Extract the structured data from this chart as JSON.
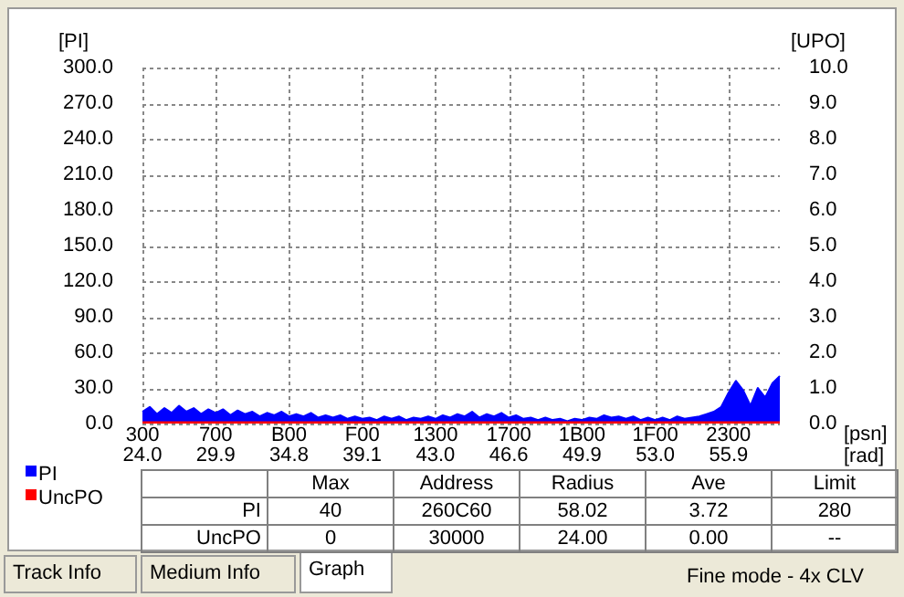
{
  "chart_data": {
    "type": "area",
    "ylabel": "[PI]",
    "y2label": "[UPO]",
    "xlabel": "[psn]",
    "x2label": "[rad]",
    "categories": [
      "300\n24.0",
      null,
      null,
      null,
      null,
      null,
      null,
      null,
      null,
      null,
      "700\n29.9",
      null,
      null,
      null,
      null,
      null,
      null,
      null,
      null,
      null,
      "B00\n34.8",
      null,
      null,
      null,
      null,
      null,
      null,
      null,
      null,
      null,
      "F00\n39.1",
      null,
      null,
      null,
      null,
      null,
      null,
      null,
      null,
      null,
      "1300\n43.0",
      null,
      null,
      null,
      null,
      null,
      null,
      null,
      null,
      null,
      "1700\n46.6",
      null,
      null,
      null,
      null,
      null,
      null,
      null,
      null,
      null,
      "1B00\n49.9",
      null,
      null,
      null,
      null,
      null,
      null,
      null,
      null,
      null,
      "1F00\n53.0",
      null,
      null,
      null,
      null,
      null,
      null,
      null,
      null,
      null,
      "2300\n55.9",
      null,
      null,
      null,
      null,
      null,
      null,
      null
    ],
    "ylim": [
      0,
      300
    ],
    "yticks": [
      {
        "value": 0,
        "label": "0.0"
      },
      {
        "value": 30,
        "label": "30.0"
      },
      {
        "value": 60,
        "label": "60.0"
      },
      {
        "value": 90,
        "label": "90.0"
      },
      {
        "value": 120,
        "label": "120.0"
      },
      {
        "value": 150,
        "label": "150.0"
      },
      {
        "value": 180,
        "label": "180.0"
      },
      {
        "value": 210,
        "label": "210.0"
      },
      {
        "value": 240,
        "label": "240.0"
      },
      {
        "value": 270,
        "label": "270.0"
      },
      {
        "value": 300,
        "label": "300.0"
      }
    ],
    "y2lim": [
      0,
      10
    ],
    "y2ticks": [
      {
        "value": 0,
        "label": "0.0"
      },
      {
        "value": 1,
        "label": "1.0"
      },
      {
        "value": 2,
        "label": "2.0"
      },
      {
        "value": 3,
        "label": "3.0"
      },
      {
        "value": 4,
        "label": "4.0"
      },
      {
        "value": 5,
        "label": "5.0"
      },
      {
        "value": 6,
        "label": "6.0"
      },
      {
        "value": 7,
        "label": "7.0"
      },
      {
        "value": 8,
        "label": "8.0"
      },
      {
        "value": 9,
        "label": "9.0"
      },
      {
        "value": 10,
        "label": "10.0"
      }
    ],
    "series": [
      {
        "name": "PI",
        "color": "#0000ff",
        "values": [
          10,
          14,
          8,
          13,
          9,
          15,
          10,
          13,
          8,
          12,
          9,
          12,
          7,
          11,
          8,
          10,
          6,
          9,
          7,
          10,
          6,
          8,
          6,
          9,
          5,
          7,
          5,
          7,
          4,
          6,
          4,
          5,
          3,
          6,
          4,
          6,
          3,
          5,
          4,
          6,
          4,
          7,
          5,
          8,
          6,
          10,
          5,
          8,
          6,
          9,
          5,
          7,
          4,
          5,
          3,
          5,
          3,
          4,
          2,
          4,
          3,
          5,
          4,
          7,
          5,
          6,
          4,
          6,
          3,
          5,
          3,
          5,
          3,
          6,
          4,
          5,
          6,
          8,
          10,
          14,
          26,
          36,
          28,
          15,
          30,
          22,
          34,
          40
        ]
      },
      {
        "name": "UncPO",
        "color": "#ff0000",
        "type": "line",
        "values": [
          0,
          0,
          0,
          0,
          0,
          0,
          0,
          0,
          0,
          0,
          0,
          0,
          0,
          0,
          0,
          0,
          0,
          0,
          0,
          0,
          0,
          0,
          0,
          0,
          0,
          0,
          0,
          0,
          0,
          0,
          0,
          0,
          0,
          0,
          0,
          0,
          0,
          0,
          0,
          0,
          0,
          0,
          0,
          0,
          0,
          0,
          0,
          0,
          0,
          0,
          0,
          0,
          0,
          0,
          0,
          0,
          0,
          0,
          0,
          0,
          0,
          0,
          0,
          0,
          0,
          0,
          0,
          0,
          0,
          0,
          0,
          0,
          0,
          0,
          0,
          0,
          0,
          0,
          0,
          0,
          0,
          0,
          0,
          0,
          0,
          0,
          0,
          0
        ]
      }
    ],
    "grid": true,
    "legend": "bottom left",
    "annotations": [
      "Max",
      "Address",
      "Radius",
      "Ave",
      "Limit",
      "PI",
      "40",
      "260C60",
      "58.02",
      "3.72",
      "280",
      "UncPO",
      "0",
      "30000",
      "24.00",
      "0.00",
      "--",
      "Track Info",
      "Medium Info",
      "Graph",
      "Fine mode - 4x CLV"
    ]
  }
}
